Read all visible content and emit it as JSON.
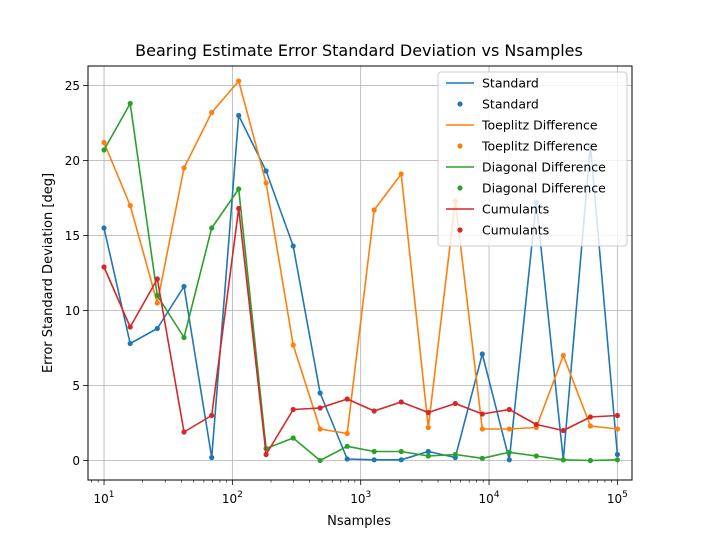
{
  "chart_data": {
    "type": "line",
    "title": "Bearing Estimate Error Standard Deviation vs Nsamples",
    "xlabel": "Nsamples",
    "ylabel": "Error Standard Deviation [deg]",
    "xscale": "log",
    "xlim": [
      7.5,
      130000
    ],
    "ylim": [
      -1.3,
      26.3
    ],
    "grid": true,
    "legend_position": "top-right",
    "x": [
      10,
      16,
      26,
      42,
      69,
      112,
      183,
      298,
      483,
      785,
      1274,
      2069,
      3360,
      5455,
      8859,
      14384,
      23357,
      37927,
      61585,
      100000
    ],
    "x_ticks": [
      {
        "value": 10,
        "base": "10",
        "exp": "1"
      },
      {
        "value": 100,
        "base": "10",
        "exp": "2"
      },
      {
        "value": 1000,
        "base": "10",
        "exp": "3"
      },
      {
        "value": 10000,
        "base": "10",
        "exp": "4"
      },
      {
        "value": 100000,
        "base": "10",
        "exp": "5"
      }
    ],
    "y_ticks": [
      0,
      5,
      10,
      15,
      20,
      25
    ],
    "series": [
      {
        "name": "Standard",
        "color": "#1f77b4",
        "values": [
          15.5,
          7.8,
          8.8,
          11.6,
          0.2,
          23.0,
          19.3,
          14.3,
          4.5,
          0.1,
          0.05,
          0.05,
          0.6,
          0.2,
          7.1,
          0.05,
          17.2,
          0.05,
          21.0,
          0.4
        ]
      },
      {
        "name": "Toeplitz Difference",
        "color": "#ff7f0e",
        "values": [
          21.2,
          17.0,
          10.5,
          19.5,
          23.2,
          25.3,
          18.5,
          7.7,
          2.1,
          1.8,
          16.7,
          19.1,
          2.2,
          17.3,
          2.1,
          2.1,
          2.2,
          7.0,
          2.3,
          2.1
        ]
      },
      {
        "name": "Diagonal Difference",
        "color": "#2ca02c",
        "values": [
          20.7,
          23.8,
          11.0,
          8.2,
          15.5,
          18.1,
          0.8,
          1.5,
          0.0,
          0.95,
          0.6,
          0.6,
          0.3,
          0.4,
          0.15,
          0.55,
          0.3,
          0.05,
          0.0,
          0.05
        ]
      },
      {
        "name": "Cumulants",
        "color": "#d62728",
        "values": [
          12.9,
          8.9,
          12.1,
          1.9,
          3.0,
          16.8,
          0.4,
          3.4,
          3.5,
          4.1,
          3.3,
          3.9,
          3.2,
          3.8,
          3.1,
          3.4,
          2.4,
          2.0,
          2.9,
          3.0
        ]
      }
    ],
    "legend": [
      {
        "label": "Standard",
        "kind": "line",
        "color": "#1f77b4"
      },
      {
        "label": "Standard",
        "kind": "marker",
        "color": "#1f77b4"
      },
      {
        "label": "Toeplitz Difference",
        "kind": "line",
        "color": "#ff7f0e"
      },
      {
        "label": "Toeplitz Difference",
        "kind": "marker",
        "color": "#ff7f0e"
      },
      {
        "label": "Diagonal Difference",
        "kind": "line",
        "color": "#2ca02c"
      },
      {
        "label": "Diagonal Difference",
        "kind": "marker",
        "color": "#2ca02c"
      },
      {
        "label": "Cumulants",
        "kind": "line",
        "color": "#d62728"
      },
      {
        "label": "Cumulants",
        "kind": "marker",
        "color": "#d62728"
      }
    ]
  }
}
